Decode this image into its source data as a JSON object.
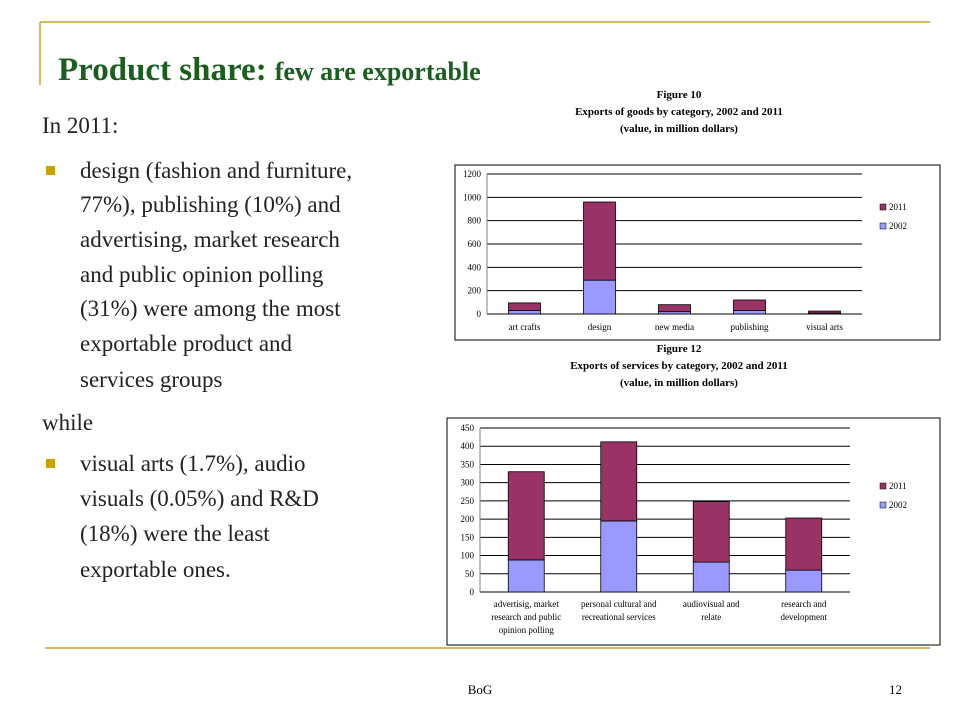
{
  "slide": {
    "title": "Product share:",
    "title_sub": "few are exportable",
    "footer": "BoG",
    "page": "12",
    "body": [
      {
        "bullet": false,
        "lines": [
          "In 2011:"
        ]
      },
      {
        "bullet": true,
        "lines": [
          "design (fashion and furniture,",
          "77%), publishing (10%) and",
          "advertising, market research",
          "and public opinion polling",
          "(31%) were among the most",
          "exportable product and",
          "services groups"
        ]
      },
      {
        "bullet": false,
        "lines": [
          "while"
        ]
      },
      {
        "bullet": true,
        "lines": [
          "visual arts (1.7%), audio",
          "visuals (0.05%) and R&D",
          "(18%) were the least",
          "exportable ones."
        ]
      }
    ]
  },
  "chart_data": [
    {
      "type": "stacked_bar",
      "title": "Figure 10\nExports of goods by category, 2002 and 2011\n(value, in million dollars)",
      "categories": [
        "art crafts",
        "design",
        "new media",
        "publishing",
        "visual arts"
      ],
      "series": [
        {
          "name": "2011",
          "color": "#993366",
          "values": [
            65,
            670,
            60,
            90,
            17
          ]
        },
        {
          "name": "2002",
          "color": "#9999ff",
          "values": [
            30,
            290,
            20,
            30,
            8
          ]
        }
      ],
      "ylim": [
        0,
        1200
      ],
      "yticks": [
        0,
        200,
        400,
        600,
        800,
        1000,
        1200
      ],
      "grid": true,
      "legend": "right"
    },
    {
      "type": "stacked_bar",
      "title": "Figure 12\nExports of services by category, 2002 and 2011\n(value, in million dollars)",
      "categories": [
        "advertisig, market\nresearch and public\nopinion polling",
        "personal cultural and\nrecreational services",
        "audiovisual and\nrelate",
        "research and\ndevelopment"
      ],
      "series": [
        {
          "name": "2011",
          "color": "#993366",
          "values": [
            242,
            217,
            166,
            143
          ]
        },
        {
          "name": "2002",
          "color": "#9999ff",
          "values": [
            88,
            195,
            82,
            60
          ]
        }
      ],
      "ylim": [
        0,
        450
      ],
      "yticks": [
        0,
        50,
        100,
        150,
        200,
        250,
        300,
        350,
        400,
        450
      ],
      "grid": true,
      "legend": "right"
    }
  ]
}
